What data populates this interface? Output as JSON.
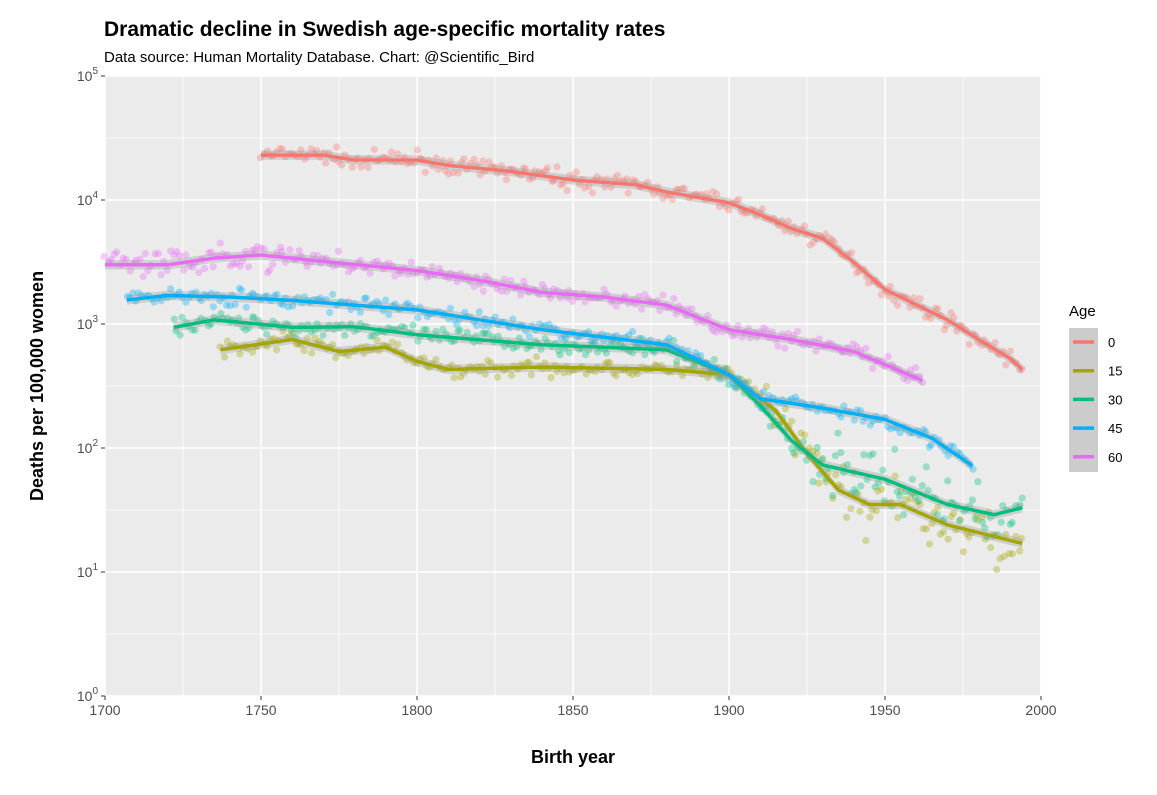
{
  "chart_data": {
    "type": "scatter",
    "title": "Dramatic decline in Swedish age-specific mortality rates",
    "subtitle": "Data source: Human Mortality Database. Chart: @Scientific_Bird",
    "xlabel": "Birth year",
    "ylabel": "Deaths per 100,000 women",
    "xlim": [
      1700,
      2000
    ],
    "ylim": [
      1,
      100000
    ],
    "yscale": "log10",
    "grid": true,
    "x_ticks": [
      "1700",
      "1750",
      "1800",
      "1850",
      "1900",
      "1950",
      "2000"
    ],
    "y_ticks": [
      {
        "base": "10",
        "exp": "0"
      },
      {
        "base": "10",
        "exp": "1"
      },
      {
        "base": "10",
        "exp": "2"
      },
      {
        "base": "10",
        "exp": "3"
      },
      {
        "base": "10",
        "exp": "4"
      },
      {
        "base": "10",
        "exp": "5"
      }
    ],
    "legend": {
      "title": "Age",
      "placement": "right"
    },
    "series": [
      {
        "name": "0",
        "color": "#F8766D",
        "smooth": [
          [
            1750,
            23000
          ],
          [
            1770,
            23000
          ],
          [
            1780,
            21000
          ],
          [
            1800,
            21000
          ],
          [
            1810,
            19000
          ],
          [
            1830,
            17000
          ],
          [
            1850,
            14500
          ],
          [
            1870,
            13300
          ],
          [
            1880,
            11600
          ],
          [
            1900,
            9500
          ],
          [
            1910,
            7600
          ],
          [
            1920,
            5900
          ],
          [
            1930,
            4900
          ],
          [
            1940,
            3150
          ],
          [
            1950,
            1900
          ],
          [
            1960,
            1430
          ],
          [
            1970,
            1080
          ],
          [
            1980,
            750
          ],
          [
            1990,
            530
          ],
          [
            1994,
            430
          ]
        ]
      },
      {
        "name": "15",
        "color": "#A3A500",
        "smooth": [
          [
            1737,
            620
          ],
          [
            1760,
            750
          ],
          [
            1775,
            600
          ],
          [
            1790,
            650
          ],
          [
            1800,
            500
          ],
          [
            1810,
            430
          ],
          [
            1840,
            450
          ],
          [
            1880,
            430
          ],
          [
            1900,
            390
          ],
          [
            1915,
            200
          ],
          [
            1925,
            90
          ],
          [
            1935,
            46
          ],
          [
            1945,
            35
          ],
          [
            1955,
            35
          ],
          [
            1970,
            24
          ],
          [
            1994,
            17
          ]
        ]
      },
      {
        "name": "30",
        "color": "#00BF7D",
        "smooth": [
          [
            1722,
            940
          ],
          [
            1735,
            1080
          ],
          [
            1760,
            940
          ],
          [
            1780,
            950
          ],
          [
            1800,
            820
          ],
          [
            1840,
            680
          ],
          [
            1880,
            620
          ],
          [
            1900,
            390
          ],
          [
            1910,
            220
          ],
          [
            1920,
            115
          ],
          [
            1930,
            73
          ],
          [
            1950,
            56
          ],
          [
            1970,
            35
          ],
          [
            1985,
            29
          ],
          [
            1994,
            33
          ]
        ]
      },
      {
        "name": "45",
        "color": "#00B0F6",
        "smooth": [
          [
            1707,
            1560
          ],
          [
            1720,
            1700
          ],
          [
            1740,
            1650
          ],
          [
            1760,
            1550
          ],
          [
            1800,
            1300
          ],
          [
            1840,
            900
          ],
          [
            1880,
            680
          ],
          [
            1900,
            390
          ],
          [
            1910,
            250
          ],
          [
            1930,
            210
          ],
          [
            1950,
            170
          ],
          [
            1965,
            120
          ],
          [
            1978,
            72
          ]
        ]
      },
      {
        "name": "60",
        "color": "#E76BF3",
        "smooth": [
          [
            1700,
            3000
          ],
          [
            1720,
            3000
          ],
          [
            1735,
            3400
          ],
          [
            1750,
            3600
          ],
          [
            1770,
            3200
          ],
          [
            1800,
            2700
          ],
          [
            1820,
            2250
          ],
          [
            1840,
            1800
          ],
          [
            1860,
            1650
          ],
          [
            1880,
            1420
          ],
          [
            1900,
            900
          ],
          [
            1920,
            750
          ],
          [
            1940,
            600
          ],
          [
            1962,
            350
          ]
        ]
      }
    ]
  }
}
